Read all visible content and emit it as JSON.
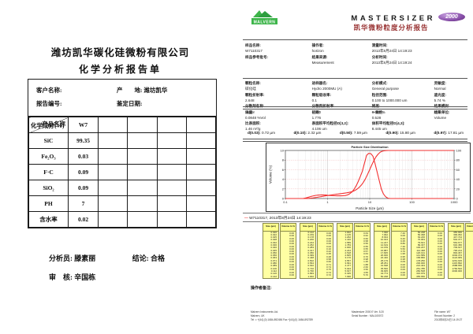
{
  "left_report": {
    "company": "潍坊凯华碳化硅微粉有限公司",
    "title": "化学分析报告单",
    "info": {
      "customer_label": "客户名称:",
      "origin_label": "产　　地: ",
      "origin_value": "潍坊凯华",
      "report_no_label": "报告编号:",
      "date_label": "鉴定日期:"
    },
    "grid": {
      "diag_top": "产品名称",
      "diag_bottom": "化学成分(%)",
      "product": "W7",
      "rows": [
        [
          "SiC",
          "99.35"
        ],
        [
          "Fe₂O₃",
          "0.03"
        ],
        [
          "F·C",
          "0.09"
        ],
        [
          "SiO₂",
          "0.09"
        ],
        [
          "PH",
          "7"
        ],
        [
          "含水率",
          "0.02"
        ]
      ]
    },
    "sign": {
      "analyst_label": "分析员: ",
      "analyst": "滕素丽",
      "conclusion_label": "结论: ",
      "conclusion": "合格",
      "review_label": "审　核: ",
      "reviewer": "辛国栋"
    }
  },
  "right_report": {
    "brand": {
      "malvern": "MALVERN",
      "mastersizer": "MASTERSIZER",
      "model": "2000",
      "title": "凯华微粉粒度分析报告"
    },
    "info_a": [
      [
        {
          "l": "样品名称:",
          "v": "W7110317"
        },
        {
          "l": "操作者:",
          "v": "horizon"
        },
        {
          "l": "测量时间:",
          "v": "2013年8月24日 14:19:23"
        }
      ],
      [
        {
          "l": "样品参考批号:",
          "v": ""
        },
        {
          "l": "结果来源:",
          "v": "Measurement"
        },
        {
          "l": "分析时间:",
          "v": "2013年8月24日 14:19:24"
        }
      ]
    ],
    "info_b": [
      [
        {
          "l": "颗粒名称:",
          "v": "碳化硅"
        },
        {
          "l": "进样器名:",
          "v": "Hydro 2000MU (A)"
        },
        {
          "l": "分析模式:",
          "v": "General purpose"
        },
        {
          "l": "灵敏度:",
          "v": "Normal"
        }
      ],
      [
        {
          "l": "颗粒折射率:",
          "v": "2.648"
        },
        {
          "l": "颗粒吸收率:",
          "v": "0.1"
        },
        {
          "l": "粒径范围:",
          "v": "0.100 to 1000.000 um"
        },
        {
          "l": "遮光度:",
          "v": "5.74 %"
        }
      ],
      [
        {
          "l": "分散剂名称:",
          "v": "Water"
        },
        {
          "l": "分散剂折射率:",
          "v": "1.330"
        },
        {
          "l": "残差:",
          "v": "0.346 %"
        },
        {
          "l": "结果模拟:",
          "v": "Off"
        }
      ]
    ],
    "info_c": [
      [
        {
          "l": "浓度:",
          "v": "0.0848 %Vol"
        },
        {
          "l": "径距:",
          "v": "1.776"
        },
        {
          "l": "一致性:",
          "v": "0.528"
        },
        {
          "l": "结果单位:",
          "v": "Volume"
        }
      ],
      [
        {
          "l": "比表面积:",
          "v": "1.46 m²/g"
        },
        {
          "l": "表面积平均粒径D[3,2]:",
          "v": "4.106 um"
        },
        {
          "l": "体积平均粒径D[4,3]:",
          "v": "8.445 um"
        },
        {
          "l": "",
          "v": ""
        }
      ]
    ],
    "d_values": [
      {
        "l": "d(0.03):",
        "v": "0.72 µm"
      },
      {
        "l": "d(0.10):",
        "v": "2.32 µm"
      },
      {
        "l": "d(0.50):",
        "v": "7.59 µm"
      },
      {
        "l": "d(0.90):",
        "v": "15.80 µm"
      },
      {
        "l": "d(0.97):",
        "v": "17.81 µm"
      }
    ],
    "size_table": {
      "size_header": "Size (µm)",
      "vol_header": "Volume In %"
    },
    "notes_label": "操作者备注:",
    "footer": {
      "left": [
        "Malvern Instruments Ltd.",
        "Malvern, UK",
        "Tel := +[44] (0) 1684-892456 Fax +[44] (0) 1684-892789"
      ],
      "center": [
        "Mastersizer 2000 E Ver. 5.20",
        "Serial Number : MAL100072"
      ],
      "right": [
        "File name: W7",
        "Record Number: 2",
        "2013年8月24日 14:19:27"
      ]
    }
  },
  "chart_data": {
    "type": "line",
    "title": "Particle Size Distribution",
    "xlabel": "Particle Size (µm)",
    "ylabel": "Volume (%)",
    "x_scale": "log",
    "xlim": [
      0.1,
      1000
    ],
    "x_ticks": [
      "0.1",
      "1",
      "10",
      "100",
      "1000"
    ],
    "ylim_left": [
      0,
      10
    ],
    "y_ticks_left": [
      0,
      2,
      4,
      6,
      8,
      10
    ],
    "ylim_right": [
      0,
      100
    ],
    "y_ticks_right": [
      0,
      20,
      40,
      60,
      80,
      100
    ],
    "grid": true,
    "line_color": "#f23030",
    "legend": "W7110317, 2013年8月24日 14:19:23",
    "series": [
      "volume frequency (left axis)",
      "cumulative volume (right axis)"
    ],
    "size_classes_um": [
      "0.020",
      "0.022",
      "0.025",
      "0.028",
      "0.032",
      "0.036",
      "0.040",
      "0.045",
      "0.050",
      "0.056",
      "0.063",
      "0.071",
      "0.080",
      "0.089",
      "0.100",
      "0.112",
      "0.126",
      "0.142",
      "0.159",
      "0.178",
      "0.200",
      "0.224",
      "0.252",
      "0.283",
      "0.317",
      "0.356",
      "0.399",
      "0.448",
      "0.502",
      "0.564",
      "0.632",
      "0.710",
      "0.796",
      "0.893",
      "1.002",
      "1.125",
      "1.262",
      "1.416",
      "1.589",
      "1.783",
      "2.000",
      "2.244",
      "2.518",
      "2.825",
      "3.170",
      "3.557",
      "3.991",
      "4.477",
      "5.024",
      "5.637",
      "6.325",
      "7.096",
      "7.962",
      "8.934",
      "10.024",
      "11.247",
      "12.619",
      "14.159",
      "15.887",
      "17.825",
      "20.000",
      "22.440",
      "25.179",
      "28.251",
      "31.698",
      "35.566",
      "39.905",
      "44.774",
      "50.238",
      "56.368",
      "63.246",
      "70.963",
      "79.621",
      "89.337",
      "100.237",
      "112.468",
      "126.191",
      "141.589",
      "158.866",
      "178.250",
      "200.000",
      "224.404",
      "251.785",
      "282.508",
      "316.979",
      "355.656",
      "399.052",
      "447.744",
      "502.377",
      "563.677",
      "632.456",
      "709.627",
      "796.214",
      "893.367",
      "1002.374",
      "1124.683",
      "1261.915",
      "1415.892",
      "1588.656",
      "1782.502",
      "2000.000"
    ],
    "volume_in_percent": [
      "0.00",
      "0.00",
      "0.00",
      "0.00",
      "0.00",
      "0.00",
      "0.00",
      "0.00",
      "0.00",
      "0.00",
      "0.00",
      "0.00",
      "0.00",
      "0.00",
      "0.00",
      "0.00",
      "0.00",
      "0.00",
      "0.00",
      "0.00",
      "0.00",
      "0.00",
      "0.02",
      "0.10",
      "0.22",
      "0.35",
      "0.48",
      "0.58",
      "0.66",
      "0.71",
      "0.74",
      "0.75",
      "0.74",
      "0.72",
      "0.63",
      "0.62",
      "0.60",
      "0.58",
      "0.56",
      "0.55",
      "0.55",
      "0.57",
      "0.63",
      "0.76",
      "0.98",
      "1.35",
      "1.88",
      "2.60",
      "3.50",
      "4.55",
      "5.70",
      "7.40",
      "9.00",
      "9.40",
      "9.35",
      "8.80",
      "7.30",
      "5.50",
      "3.70",
      "1.95",
      "0.95",
      "0.38",
      "0.09",
      "0.00",
      "0.00",
      "0.00",
      "0.00",
      "0.00",
      "0.00",
      "0.00",
      "0.00",
      "0.00",
      "0.00",
      "0.00",
      "0.00",
      "0.00",
      "0.00",
      "0.00",
      "0.00",
      "0.00",
      "0.00",
      "0.00",
      "0.00",
      "0.00",
      "0.00",
      "0.00",
      "0.00",
      "0.00",
      "0.00",
      "0.00",
      "0.00",
      "0.00",
      "0.00",
      "0.00",
      "0.00",
      "0.00",
      "0.00",
      "0.00",
      "0.00",
      "0.00"
    ]
  }
}
